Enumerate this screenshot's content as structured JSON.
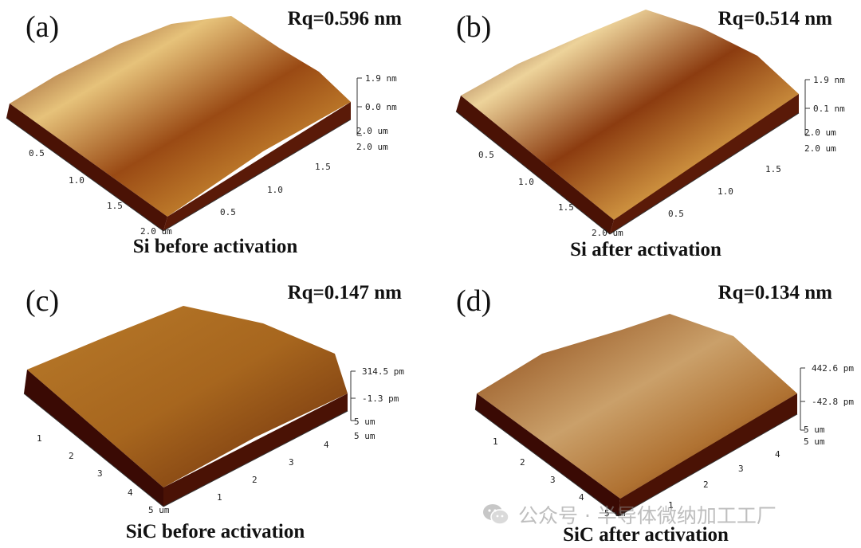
{
  "panels": [
    {
      "letter": "(a)",
      "rq": "Rq=0.596 nm",
      "caption": "Si before activation",
      "z_max": "1.9 nm",
      "z_mid": "0.0 nm",
      "axis_end_right": "2.0 um",
      "axis_end_left": "2.0 um",
      "ticks_left": [
        "0.5",
        "1.0",
        "1.5",
        "2.0 um"
      ],
      "ticks_right": [
        "0.5",
        "1.0",
        "1.5",
        "2.0 um"
      ]
    },
    {
      "letter": "(b)",
      "rq": "Rq=0.514 nm",
      "caption": "Si after activation",
      "z_max": "1.9 nm",
      "z_mid": "0.1 nm",
      "axis_end_right": "2.0 um",
      "axis_end_left": "2.0 um",
      "ticks_left": [
        "0.5",
        "1.0",
        "1.5",
        "2.0 um"
      ],
      "ticks_right": [
        "0.5",
        "1.0",
        "1.5",
        "2.0 um"
      ]
    },
    {
      "letter": "(c)",
      "rq": "Rq=0.147 nm",
      "caption": "SiC before activation",
      "z_max": "314.5 pm",
      "z_mid": "-1.3 pm",
      "axis_end_right": "5 um",
      "axis_end_left": "5 um",
      "ticks_left": [
        "1",
        "2",
        "3",
        "4",
        "5 um"
      ],
      "ticks_right": [
        "1",
        "2",
        "3",
        "4",
        "5 um"
      ]
    },
    {
      "letter": "(d)",
      "rq": "Rq=0.134 nm",
      "caption": "SiC after activation",
      "z_max": "442.6 pm",
      "z_mid": "-42.8 pm",
      "axis_end_right": "5 um",
      "axis_end_left": "5 um",
      "ticks_left": [
        "1",
        "2",
        "3",
        "4",
        "5 um"
      ],
      "ticks_right": [
        "1",
        "2",
        "3",
        "4",
        "5 um"
      ]
    }
  ],
  "watermark": {
    "text": "公众号 · 半导体微纳加工工厂",
    "icon": "wechat-icon"
  },
  "colors": {
    "surface_dark": "#3a0a04",
    "surface_mid": "#b06a1e",
    "surface_light": "#f4e2b4"
  }
}
